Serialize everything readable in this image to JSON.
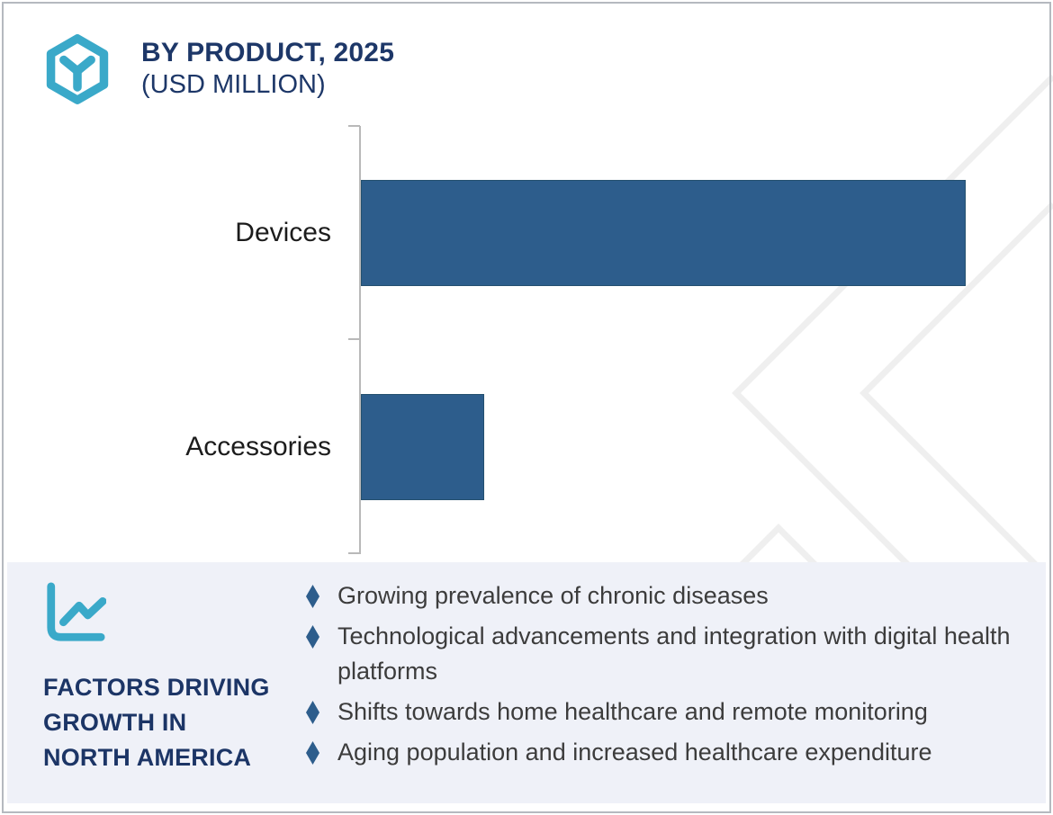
{
  "header": {
    "title": "BY PRODUCT, 2025",
    "subtitle": "(USD MILLION)",
    "logo_icon": "hexagon-cube-logo-icon"
  },
  "chart_data": {
    "type": "bar",
    "orientation": "horizontal",
    "title": "BY PRODUCT, 2025",
    "subtitle": "(USD MILLION)",
    "categories": [
      "Devices",
      "Accessories"
    ],
    "relative_values_pct_of_max": [
      100,
      20.4
    ],
    "value_axis_labels_visible": false,
    "value_data_labels_visible": false,
    "category_axis_ticks": 3,
    "bar_color": "#2d5d8c",
    "axis_color": "#b9b9b9",
    "grid": false,
    "legend": false
  },
  "factors": {
    "icon": "line-chart-icon",
    "heading_lines": [
      "FACTORS DRIVING",
      "GROWTH IN",
      "NORTH AMERICA"
    ],
    "bullets": [
      "Growing prevalence of chronic diseases",
      "Technological advancements and integration with digital health platforms",
      "Shifts towards home healthcare and remote monitoring",
      "Aging population and increased healthcare expenditure"
    ]
  },
  "colors": {
    "accent_cyan": "#3aa9c9",
    "navy_heading": "#1d3768",
    "bar_blue": "#2d5d8c",
    "panel_background": "#eff1f8",
    "bullet_text": "#3c3c3c",
    "watermark_gray": "#efefef",
    "frame_border": "#b5b9bf"
  }
}
